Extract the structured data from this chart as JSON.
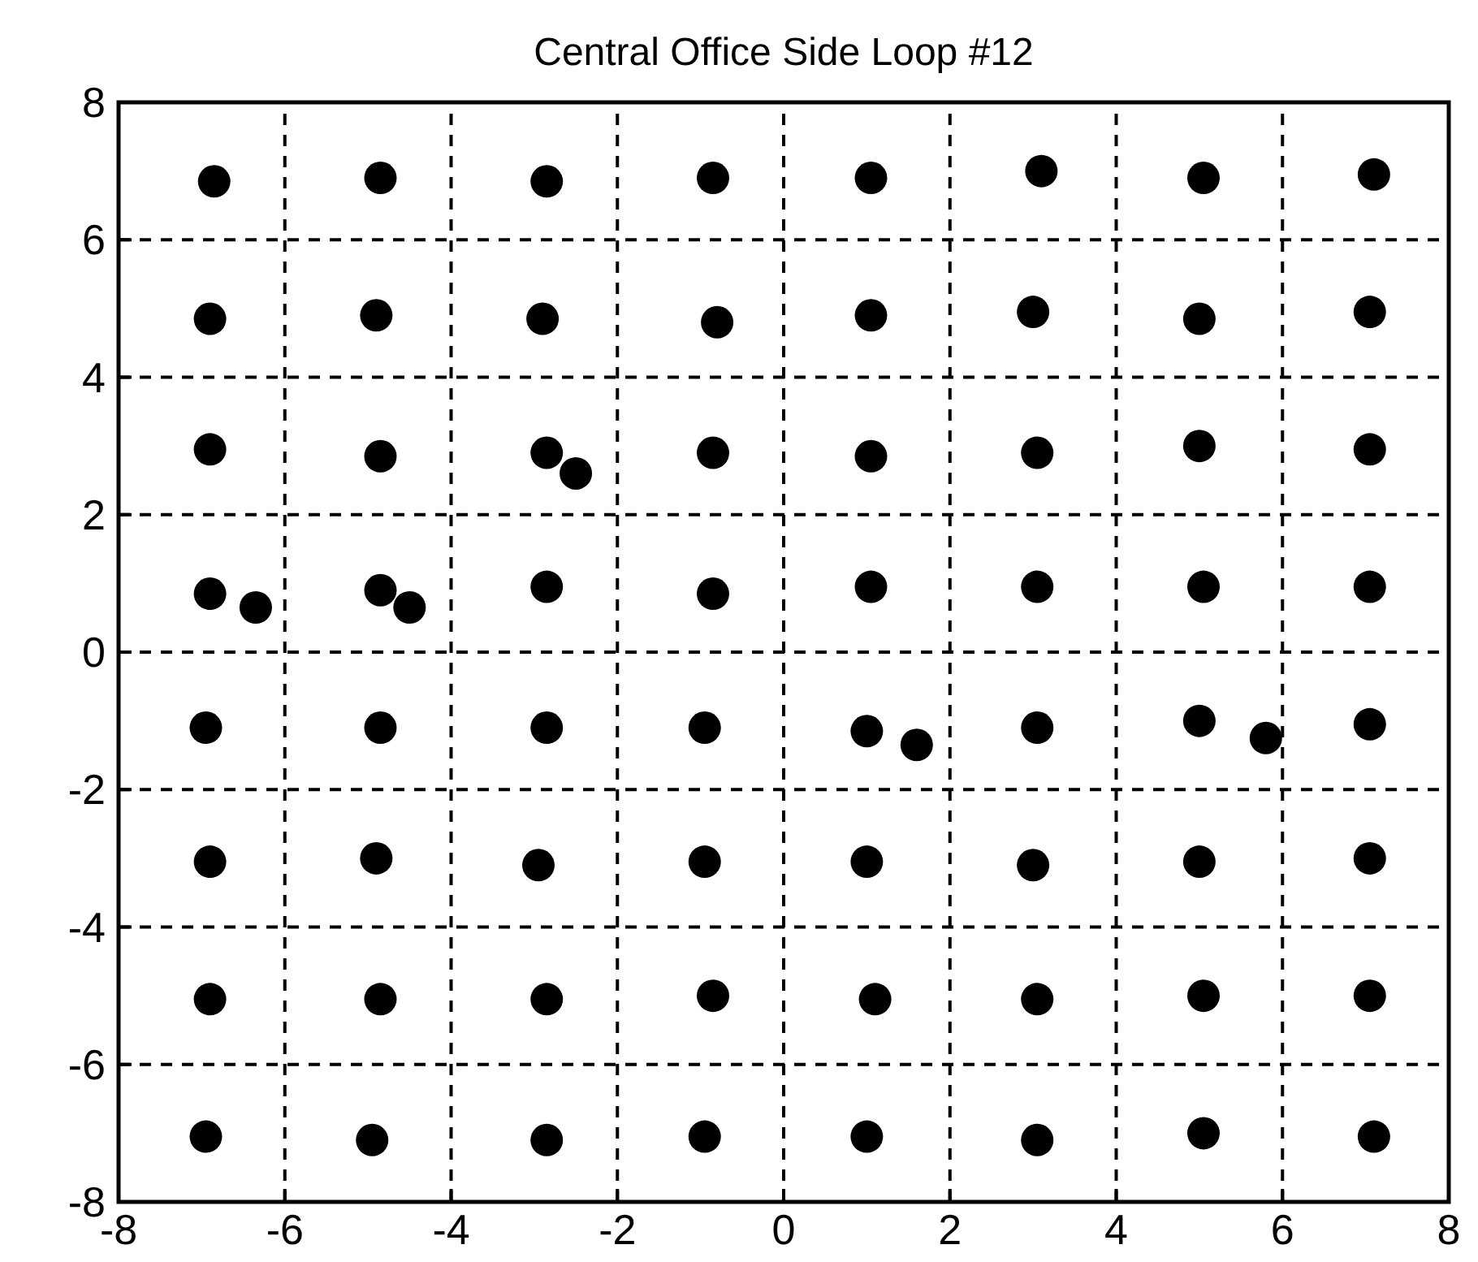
{
  "chart_data": {
    "type": "scatter",
    "title": "Central Office Side Loop #12",
    "xlim": [
      -8,
      8
    ],
    "ylim": [
      -8,
      8
    ],
    "xticks": [
      -8,
      -6,
      -4,
      -2,
      0,
      2,
      4,
      6,
      8
    ],
    "yticks": [
      -8,
      -6,
      -4,
      -2,
      0,
      2,
      4,
      6,
      8
    ],
    "grid": true,
    "line_style": "dashed",
    "marker": "circle",
    "series": [
      {
        "color": "#000000",
        "x": [
          -6.85,
          -4.85,
          -2.85,
          -0.85,
          1.05,
          3.1,
          5.05,
          7.1,
          -6.9,
          -4.9,
          -2.9,
          -0.8,
          1.05,
          3.0,
          5.0,
          7.05,
          -6.9,
          -4.85,
          -2.85,
          -0.85,
          1.05,
          3.05,
          5.0,
          7.05,
          -6.9,
          -4.85,
          -2.85,
          -0.85,
          1.05,
          3.05,
          5.05,
          7.05,
          -6.95,
          -4.85,
          -2.85,
          -0.95,
          1.0,
          3.05,
          5.0,
          7.05,
          -6.9,
          -4.9,
          -2.95,
          -0.95,
          1.0,
          3.0,
          5.0,
          7.05,
          -6.9,
          -4.85,
          -2.85,
          -0.85,
          1.1,
          3.05,
          5.05,
          7.05,
          -6.95,
          -4.95,
          -2.85,
          -0.95,
          1.0,
          3.05,
          5.05,
          7.1,
          -2.5,
          -6.35,
          5.8,
          -4.5,
          1.6
        ],
        "values": [
          6.85,
          6.9,
          6.85,
          6.9,
          6.9,
          7.0,
          6.9,
          6.95,
          4.85,
          4.9,
          4.85,
          4.8,
          4.9,
          4.95,
          4.85,
          4.95,
          2.95,
          2.85,
          2.9,
          2.9,
          2.85,
          2.9,
          3.0,
          2.95,
          0.85,
          0.9,
          0.95,
          0.85,
          0.95,
          0.95,
          0.95,
          0.95,
          -1.1,
          -1.1,
          -1.1,
          -1.1,
          -1.15,
          -1.1,
          -1.0,
          -1.05,
          -3.05,
          -3.0,
          -3.1,
          -3.05,
          -3.05,
          -3.1,
          -3.05,
          -3.0,
          -5.05,
          -5.05,
          -5.05,
          -5.0,
          -5.05,
          -5.05,
          -5.0,
          -5.0,
          -7.05,
          -7.1,
          -7.1,
          -7.05,
          -7.05,
          -7.1,
          -7.0,
          -7.05,
          2.6,
          0.65,
          -1.25,
          0.65,
          -1.35
        ]
      }
    ]
  }
}
